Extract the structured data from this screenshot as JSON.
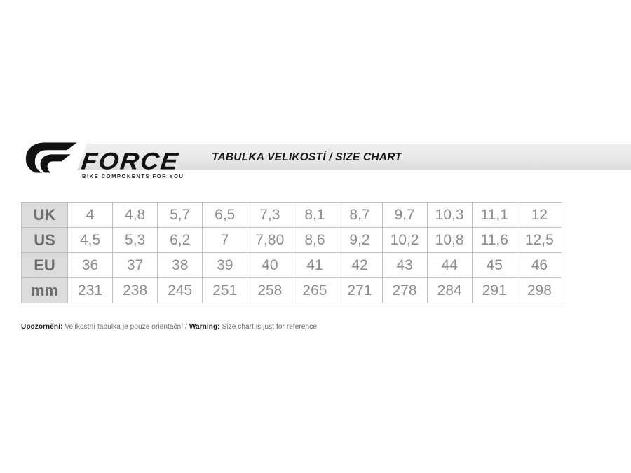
{
  "header": {
    "brand": "FORCE",
    "tagline": "BIKE COMPONENTS FOR YOU",
    "banner_title": "TABULKA VELIKOSTÍ / SIZE CHART"
  },
  "table": {
    "row_headers": [
      "UK",
      "US",
      "EU",
      "mm"
    ],
    "rows": [
      {
        "label": "UK",
        "values": [
          "4",
          "4,8",
          "5,7",
          "6,5",
          "7,3",
          "8,1",
          "8,7",
          "9,7",
          "10,3",
          "11,1",
          "12"
        ]
      },
      {
        "label": "US",
        "values": [
          "4,5",
          "5,3",
          "6,2",
          "7",
          "7,80",
          "8,6",
          "9,2",
          "10,2",
          "10,8",
          "11,6",
          "12,5"
        ]
      },
      {
        "label": "EU",
        "values": [
          "36",
          "37",
          "38",
          "39",
          "40",
          "41",
          "42",
          "43",
          "44",
          "45",
          "46"
        ]
      },
      {
        "label": "mm",
        "values": [
          "231",
          "238",
          "245",
          "251",
          "258",
          "265",
          "271",
          "278",
          "284",
          "291",
          "298"
        ]
      }
    ]
  },
  "chart_data": {
    "type": "table",
    "title": "TABULKA VELIKOSTÍ / SIZE CHART",
    "row_headers": [
      "UK",
      "US",
      "EU",
      "mm"
    ],
    "rows": [
      [
        "4",
        "4,8",
        "5,7",
        "6,5",
        "7,3",
        "8,1",
        "8,7",
        "9,7",
        "10,3",
        "11,1",
        "12"
      ],
      [
        "4,5",
        "5,3",
        "6,2",
        "7",
        "7,80",
        "8,6",
        "9,2",
        "10,2",
        "10,8",
        "11,6",
        "12,5"
      ],
      [
        "36",
        "37",
        "38",
        "39",
        "40",
        "41",
        "42",
        "43",
        "44",
        "45",
        "46"
      ],
      [
        "231",
        "238",
        "245",
        "251",
        "258",
        "265",
        "271",
        "278",
        "284",
        "291",
        "298"
      ]
    ]
  },
  "footer": {
    "note_cs_bold": "Upozornění:",
    "note_cs": " Velikostní tabulka je pouze orientační / ",
    "note_en_bold": "Warning:",
    "note_en": " Size chart is just for reference"
  },
  "colors": {
    "banner_bg_top": "#eeeeee",
    "banner_bg_bottom": "#dcdddd",
    "table_border": "#bcc1c3",
    "label_cell_bg": "#dcdcdc",
    "label_text": "#6e6e6e",
    "cell_text": "#8c8c8c",
    "logo_black": "#111111"
  }
}
